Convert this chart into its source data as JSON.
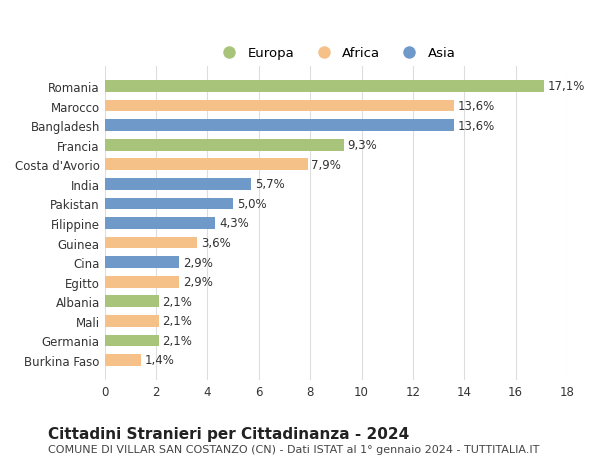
{
  "categories": [
    "Burkina Faso",
    "Germania",
    "Mali",
    "Albania",
    "Egitto",
    "Cina",
    "Guinea",
    "Filippine",
    "Pakistan",
    "India",
    "Costa d'Avorio",
    "Francia",
    "Bangladesh",
    "Marocco",
    "Romania"
  ],
  "values": [
    1.4,
    2.1,
    2.1,
    2.1,
    2.9,
    2.9,
    3.6,
    4.3,
    5.0,
    5.7,
    7.9,
    9.3,
    13.6,
    13.6,
    17.1
  ],
  "labels": [
    "1,4%",
    "2,1%",
    "2,1%",
    "2,1%",
    "2,9%",
    "2,9%",
    "3,6%",
    "4,3%",
    "5,0%",
    "5,7%",
    "7,9%",
    "9,3%",
    "13,6%",
    "13,6%",
    "17,1%"
  ],
  "colors": [
    "#f5c189",
    "#a8c47a",
    "#f5c189",
    "#a8c47a",
    "#f5c189",
    "#6e99c9",
    "#f5c189",
    "#6e99c9",
    "#6e99c9",
    "#6e99c9",
    "#f5c189",
    "#a8c47a",
    "#6e99c9",
    "#f5c189",
    "#a8c47a"
  ],
  "legend_labels": [
    "Europa",
    "Africa",
    "Asia"
  ],
  "legend_colors": [
    "#a8c47a",
    "#f5c189",
    "#6e99c9"
  ],
  "title": "Cittadini Stranieri per Cittadinanza - 2024",
  "subtitle": "COMUNE DI VILLAR SAN COSTANZO (CN) - Dati ISTAT al 1° gennaio 2024 - TUTTITALIA.IT",
  "xlim": [
    0,
    18
  ],
  "xticks": [
    0,
    2,
    4,
    6,
    8,
    10,
    12,
    14,
    16,
    18
  ],
  "background_color": "#ffffff",
  "grid_color": "#dddddd",
  "bar_height": 0.6,
  "label_fontsize": 8.5,
  "tick_fontsize": 8.5,
  "title_fontsize": 11,
  "subtitle_fontsize": 8
}
